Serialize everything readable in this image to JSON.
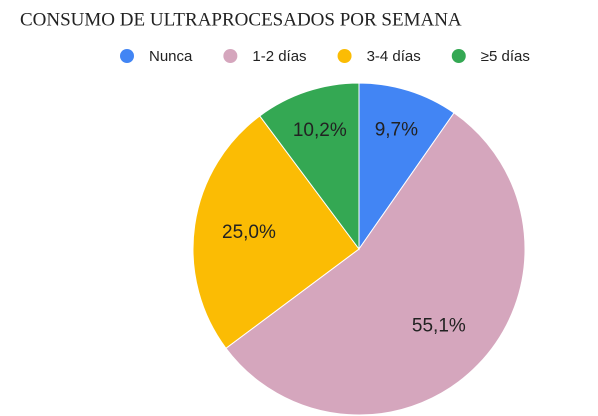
{
  "chart_data": {
    "type": "pie",
    "title": "CONSUMO DE ULTRAPROCESADOS POR SEMANA",
    "categories": [
      "Nunca",
      "1-2 días",
      "3-4 días",
      "≥5 días"
    ],
    "values": [
      9.7,
      55.1,
      25.0,
      10.2
    ],
    "value_labels": [
      "9,7%",
      "55,1%",
      "25,0%",
      "10,2%"
    ],
    "colors": [
      "#4285f4",
      "#d5a6bd",
      "#fbbc04",
      "#34a853"
    ],
    "legend": "top"
  }
}
